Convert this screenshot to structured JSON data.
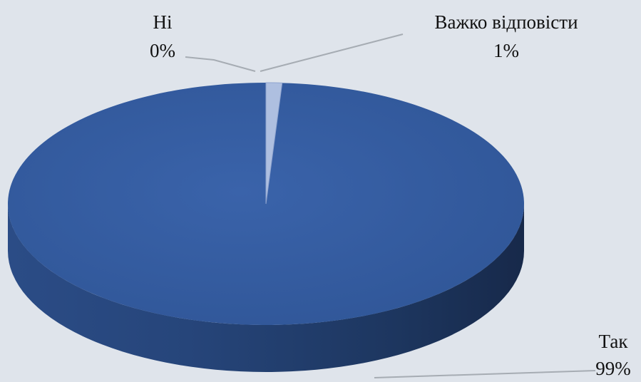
{
  "chart_data": {
    "type": "pie",
    "style": "3d",
    "slices": [
      {
        "name": "Так",
        "value": 99,
        "label": "99%",
        "color": "#345b9f"
      },
      {
        "name": "Ні",
        "value": 0,
        "label": "0%",
        "color": "#b9c7e3"
      },
      {
        "name": "Важко відповісти",
        "value": 1,
        "label": "1%",
        "color": "#aebfe0"
      }
    ],
    "legend": "none",
    "data_labels": "outside-with-leader-lines"
  }
}
